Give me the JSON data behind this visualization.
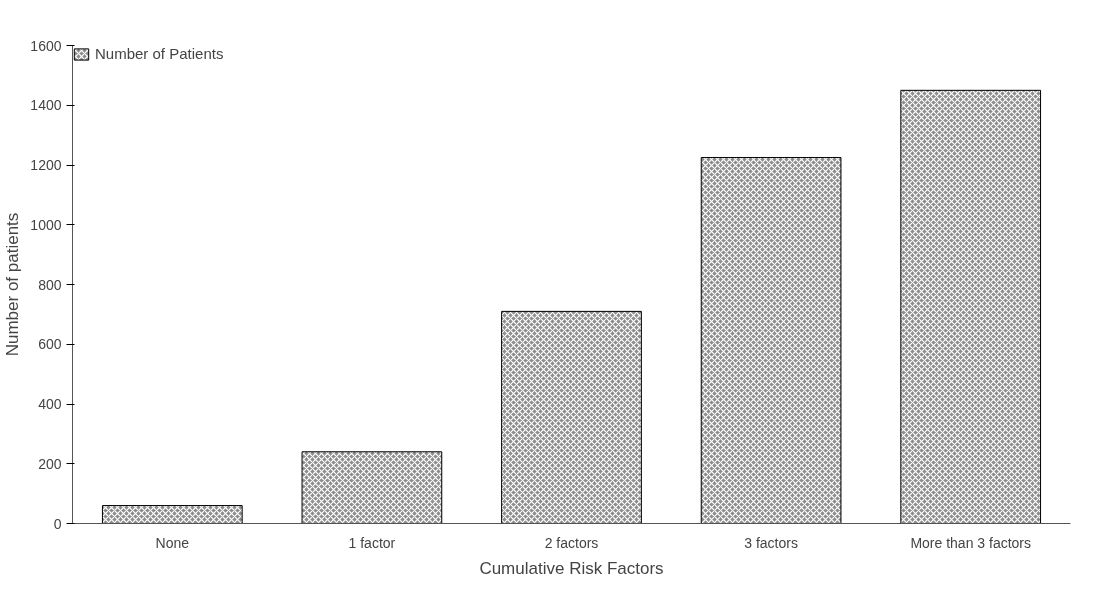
{
  "chart_data": {
    "type": "bar",
    "xlabel": "Cumulative Risk Factors",
    "ylabel": "Number of patients",
    "categories": [
      "None",
      "1 factor",
      "2 factors",
      "3 factors",
      "More than 3 factors"
    ],
    "series": [
      {
        "name": "Number of Patients",
        "color": "#8c8c8c",
        "values": [
          60,
          240,
          710,
          1225,
          1450
        ]
      }
    ],
    "ylim": [
      0,
      1600
    ],
    "yticks": [
      0,
      200,
      400,
      600,
      800,
      1000,
      1200,
      1400,
      1600
    ],
    "grid": false,
    "legend": "top left"
  }
}
